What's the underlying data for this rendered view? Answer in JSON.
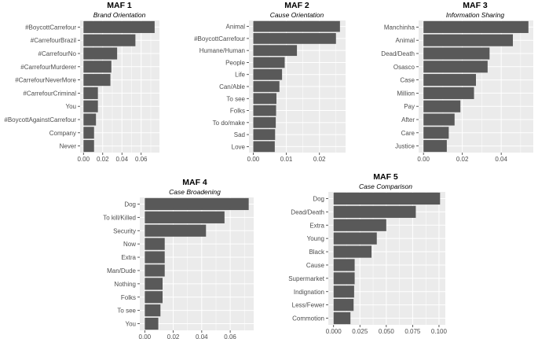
{
  "chart_data": [
    {
      "type": "bar",
      "orientation": "horizontal",
      "title": "MAF 1",
      "subtitle": "Brand Orientation",
      "categories": [
        "#BoycottCarrefour",
        "#CarrefourBrazil",
        "#CarrefourNo",
        "#CarrefourMurderer",
        "#CarrefourNeverMore",
        "#CarrefourCriminal",
        "You",
        "#BoycottAgainstCarrefour",
        "Company",
        "Never"
      ],
      "values": [
        0.074,
        0.054,
        0.035,
        0.029,
        0.028,
        0.015,
        0.015,
        0.013,
        0.011,
        0.011
      ],
      "xlim": [
        -0.0035,
        0.079
      ],
      "xticks": [
        0.0,
        0.02,
        0.04,
        0.06
      ],
      "xtick_labels": [
        "0.00",
        "0.02",
        "0.04",
        "0.06"
      ],
      "colors": {
        "bar": "#595959",
        "panel": "#ebebeb",
        "grid": "#ffffff"
      }
    },
    {
      "type": "bar",
      "orientation": "horizontal",
      "title": "MAF 2",
      "subtitle": "Cause Orientation",
      "categories": [
        "Animal",
        "#BoycottCarrefour",
        "Humane/Human",
        "People",
        "Life",
        "Can/Able",
        "To see",
        "Folks",
        "To do/make",
        "Sad",
        "Love"
      ],
      "values": [
        0.0262,
        0.025,
        0.0132,
        0.0095,
        0.0087,
        0.0079,
        0.007,
        0.0069,
        0.0068,
        0.0066,
        0.0065
      ],
      "xlim": [
        -0.0013,
        0.0279
      ],
      "xticks": [
        0.0,
        0.01,
        0.02
      ],
      "xtick_labels": [
        "0.00",
        "0.01",
        "0.02"
      ],
      "colors": {
        "bar": "#595959",
        "panel": "#ebebeb",
        "grid": "#ffffff"
      }
    },
    {
      "type": "bar",
      "orientation": "horizontal",
      "title": "MAF 3",
      "subtitle": "Information Sharing",
      "categories": [
        "Manchinha",
        "Animal",
        "Dead/Death",
        "Osasco",
        "Case",
        "Million",
        "Pay",
        "After",
        "Care",
        "Justice"
      ],
      "values": [
        0.054,
        0.046,
        0.034,
        0.033,
        0.027,
        0.026,
        0.019,
        0.016,
        0.013,
        0.012
      ],
      "xlim": [
        -0.0025,
        0.0565
      ],
      "xticks": [
        0.0,
        0.02,
        0.04
      ],
      "xtick_labels": [
        "0.00",
        "0.02",
        "0.04"
      ],
      "colors": {
        "bar": "#595959",
        "panel": "#ebebeb",
        "grid": "#ffffff"
      }
    },
    {
      "type": "bar",
      "orientation": "horizontal",
      "title": "MAF 4",
      "subtitle": "Case Broadening",
      "categories": [
        "Dog",
        "To kill/Killed",
        "Security",
        "Now",
        "Extra",
        "Man/Dude",
        "Nothing",
        "Folks",
        "To see",
        "You"
      ],
      "values": [
        0.073,
        0.056,
        0.043,
        0.014,
        0.014,
        0.014,
        0.0125,
        0.0125,
        0.011,
        0.0095
      ],
      "xlim": [
        -0.0035,
        0.0765
      ],
      "xticks": [
        0.0,
        0.02,
        0.04,
        0.06
      ],
      "xtick_labels": [
        "0.00",
        "0.02",
        "0.04",
        "0.06"
      ],
      "colors": {
        "bar": "#595959",
        "panel": "#ebebeb",
        "grid": "#ffffff"
      }
    },
    {
      "type": "bar",
      "orientation": "horizontal",
      "title": "MAF 5",
      "subtitle": "Case Comparison",
      "categories": [
        "Dog",
        "Dead/Death",
        "Extra",
        "Young",
        "Black",
        "Cause",
        "Supermarket",
        "Indignation",
        "Less/Fewer",
        "Commotion"
      ],
      "values": [
        0.101,
        0.078,
        0.05,
        0.041,
        0.036,
        0.02,
        0.02,
        0.0195,
        0.019,
        0.016
      ],
      "xlim": [
        -0.005,
        0.106
      ],
      "xticks": [
        0.0,
        0.025,
        0.05,
        0.075,
        0.1
      ],
      "xtick_labels": [
        "0.000",
        "0.025",
        "0.050",
        "0.075",
        "0.100"
      ],
      "colors": {
        "bar": "#595959",
        "panel": "#ebebeb",
        "grid": "#ffffff"
      }
    }
  ]
}
